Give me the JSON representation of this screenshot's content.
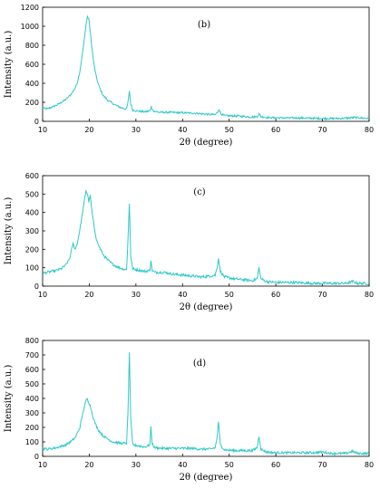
{
  "chart_data": [
    {
      "type": "line",
      "panel_label": "(b)",
      "xlabel": "2θ (degree)",
      "ylabel": "Intensity (a.u.)",
      "xlim": [
        10,
        80
      ],
      "ylim": [
        0,
        1200
      ],
      "xticks": [
        10,
        20,
        30,
        40,
        50,
        60,
        70,
        80
      ],
      "yticks": [
        0,
        200,
        400,
        600,
        800,
        1000,
        1200
      ],
      "color": "#2ec8c8",
      "noise": 10,
      "series": [
        {
          "x": [
            10,
            11,
            12,
            13,
            14,
            15,
            16,
            17,
            17.5,
            18,
            18.5,
            19,
            19.3,
            19.6,
            19.9,
            20.2,
            20.5,
            21,
            21.5,
            22,
            22.5,
            23,
            24,
            25,
            26,
            27,
            28,
            28.3,
            28.6,
            28.9,
            29.3,
            30,
            31,
            32,
            33,
            33.3,
            33.7,
            35,
            37,
            40,
            43,
            45,
            47,
            47.5,
            47.8,
            48.2,
            49,
            52,
            55,
            56,
            56.4,
            56.8,
            58,
            62,
            66,
            70,
            74,
            77,
            80
          ],
          "y": [
            140,
            130,
            150,
            170,
            200,
            230,
            280,
            350,
            420,
            530,
            700,
            880,
            1020,
            1100,
            1080,
            950,
            800,
            600,
            470,
            380,
            320,
            270,
            220,
            190,
            160,
            140,
            130,
            200,
            320,
            180,
            120,
            110,
            105,
            100,
            110,
            150,
            110,
            95,
            95,
            90,
            85,
            75,
            70,
            95,
            130,
            80,
            60,
            55,
            45,
            50,
            80,
            50,
            40,
            35,
            35,
            30,
            30,
            40,
            30
          ]
        }
      ]
    },
    {
      "type": "line",
      "panel_label": "(c)",
      "xlabel": "2θ (degree)",
      "ylabel": "Intensity (a.u.)",
      "xlim": [
        10,
        80
      ],
      "ylim": [
        0,
        600
      ],
      "xticks": [
        10,
        20,
        30,
        40,
        50,
        60,
        70,
        80
      ],
      "yticks": [
        0,
        100,
        200,
        300,
        400,
        500,
        600
      ],
      "color": "#2ec8c8",
      "noise": 7,
      "series": [
        {
          "x": [
            10,
            11,
            12,
            13,
            14,
            15,
            15.8,
            16.5,
            17,
            17.5,
            18,
            18.5,
            19,
            19.3,
            19.6,
            19.9,
            20.2,
            20.6,
            21,
            21.5,
            22,
            23,
            24,
            25,
            26,
            27,
            28,
            28.3,
            28.6,
            28.9,
            29.3,
            30,
            31,
            32,
            33,
            33.2,
            33.5,
            34,
            36,
            38,
            40,
            42,
            44,
            46,
            47,
            47.4,
            47.7,
            48.1,
            49,
            51,
            53,
            55,
            56,
            56.4,
            56.8,
            58,
            60,
            64,
            68,
            72,
            75,
            76.5,
            77.5,
            80
          ],
          "y": [
            70,
            75,
            80,
            85,
            95,
            115,
            150,
            230,
            200,
            240,
            310,
            390,
            470,
            520,
            500,
            460,
            490,
            400,
            330,
            260,
            220,
            170,
            140,
            120,
            105,
            95,
            90,
            250,
            450,
            160,
            95,
            90,
            85,
            80,
            85,
            140,
            85,
            75,
            75,
            65,
            60,
            55,
            50,
            55,
            60,
            100,
            150,
            80,
            50,
            40,
            35,
            30,
            40,
            100,
            40,
            25,
            20,
            20,
            15,
            15,
            15,
            25,
            15,
            15
          ]
        }
      ]
    },
    {
      "type": "line",
      "panel_label": "(d)",
      "xlabel": "2θ (degree)",
      "ylabel": "Intensity (a.u.)",
      "xlim": [
        10,
        80
      ],
      "ylim": [
        0,
        800
      ],
      "xticks": [
        10,
        20,
        30,
        40,
        50,
        60,
        70,
        80
      ],
      "yticks": [
        0,
        100,
        200,
        300,
        400,
        500,
        600,
        700,
        800
      ],
      "color": "#2ec8c8",
      "noise": 8,
      "series": [
        {
          "x": [
            10,
            11,
            12,
            13,
            14,
            15,
            16,
            17,
            18,
            18.5,
            19,
            19.5,
            19.8,
            20.2,
            20.6,
            21,
            21.5,
            22,
            23,
            24,
            25,
            26,
            27,
            28,
            28.3,
            28.6,
            28.9,
            29.3,
            30,
            31,
            32,
            33,
            33.2,
            33.5,
            34,
            36,
            38,
            40,
            42,
            44,
            46,
            47,
            47.4,
            47.7,
            48.1,
            49,
            51,
            53,
            55,
            56,
            56.4,
            56.8,
            58,
            60,
            64,
            68,
            70,
            72,
            75,
            76.5,
            77.5,
            80
          ],
          "y": [
            55,
            50,
            55,
            60,
            70,
            80,
            100,
            130,
            200,
            280,
            350,
            400,
            380,
            350,
            300,
            250,
            210,
            180,
            140,
            120,
            100,
            95,
            90,
            90,
            300,
            720,
            250,
            80,
            75,
            70,
            65,
            80,
            200,
            90,
            60,
            55,
            55,
            55,
            55,
            50,
            50,
            60,
            130,
            240,
            80,
            45,
            40,
            40,
            40,
            60,
            140,
            50,
            30,
            25,
            25,
            25,
            30,
            20,
            20,
            35,
            20,
            20
          ]
        }
      ]
    }
  ]
}
